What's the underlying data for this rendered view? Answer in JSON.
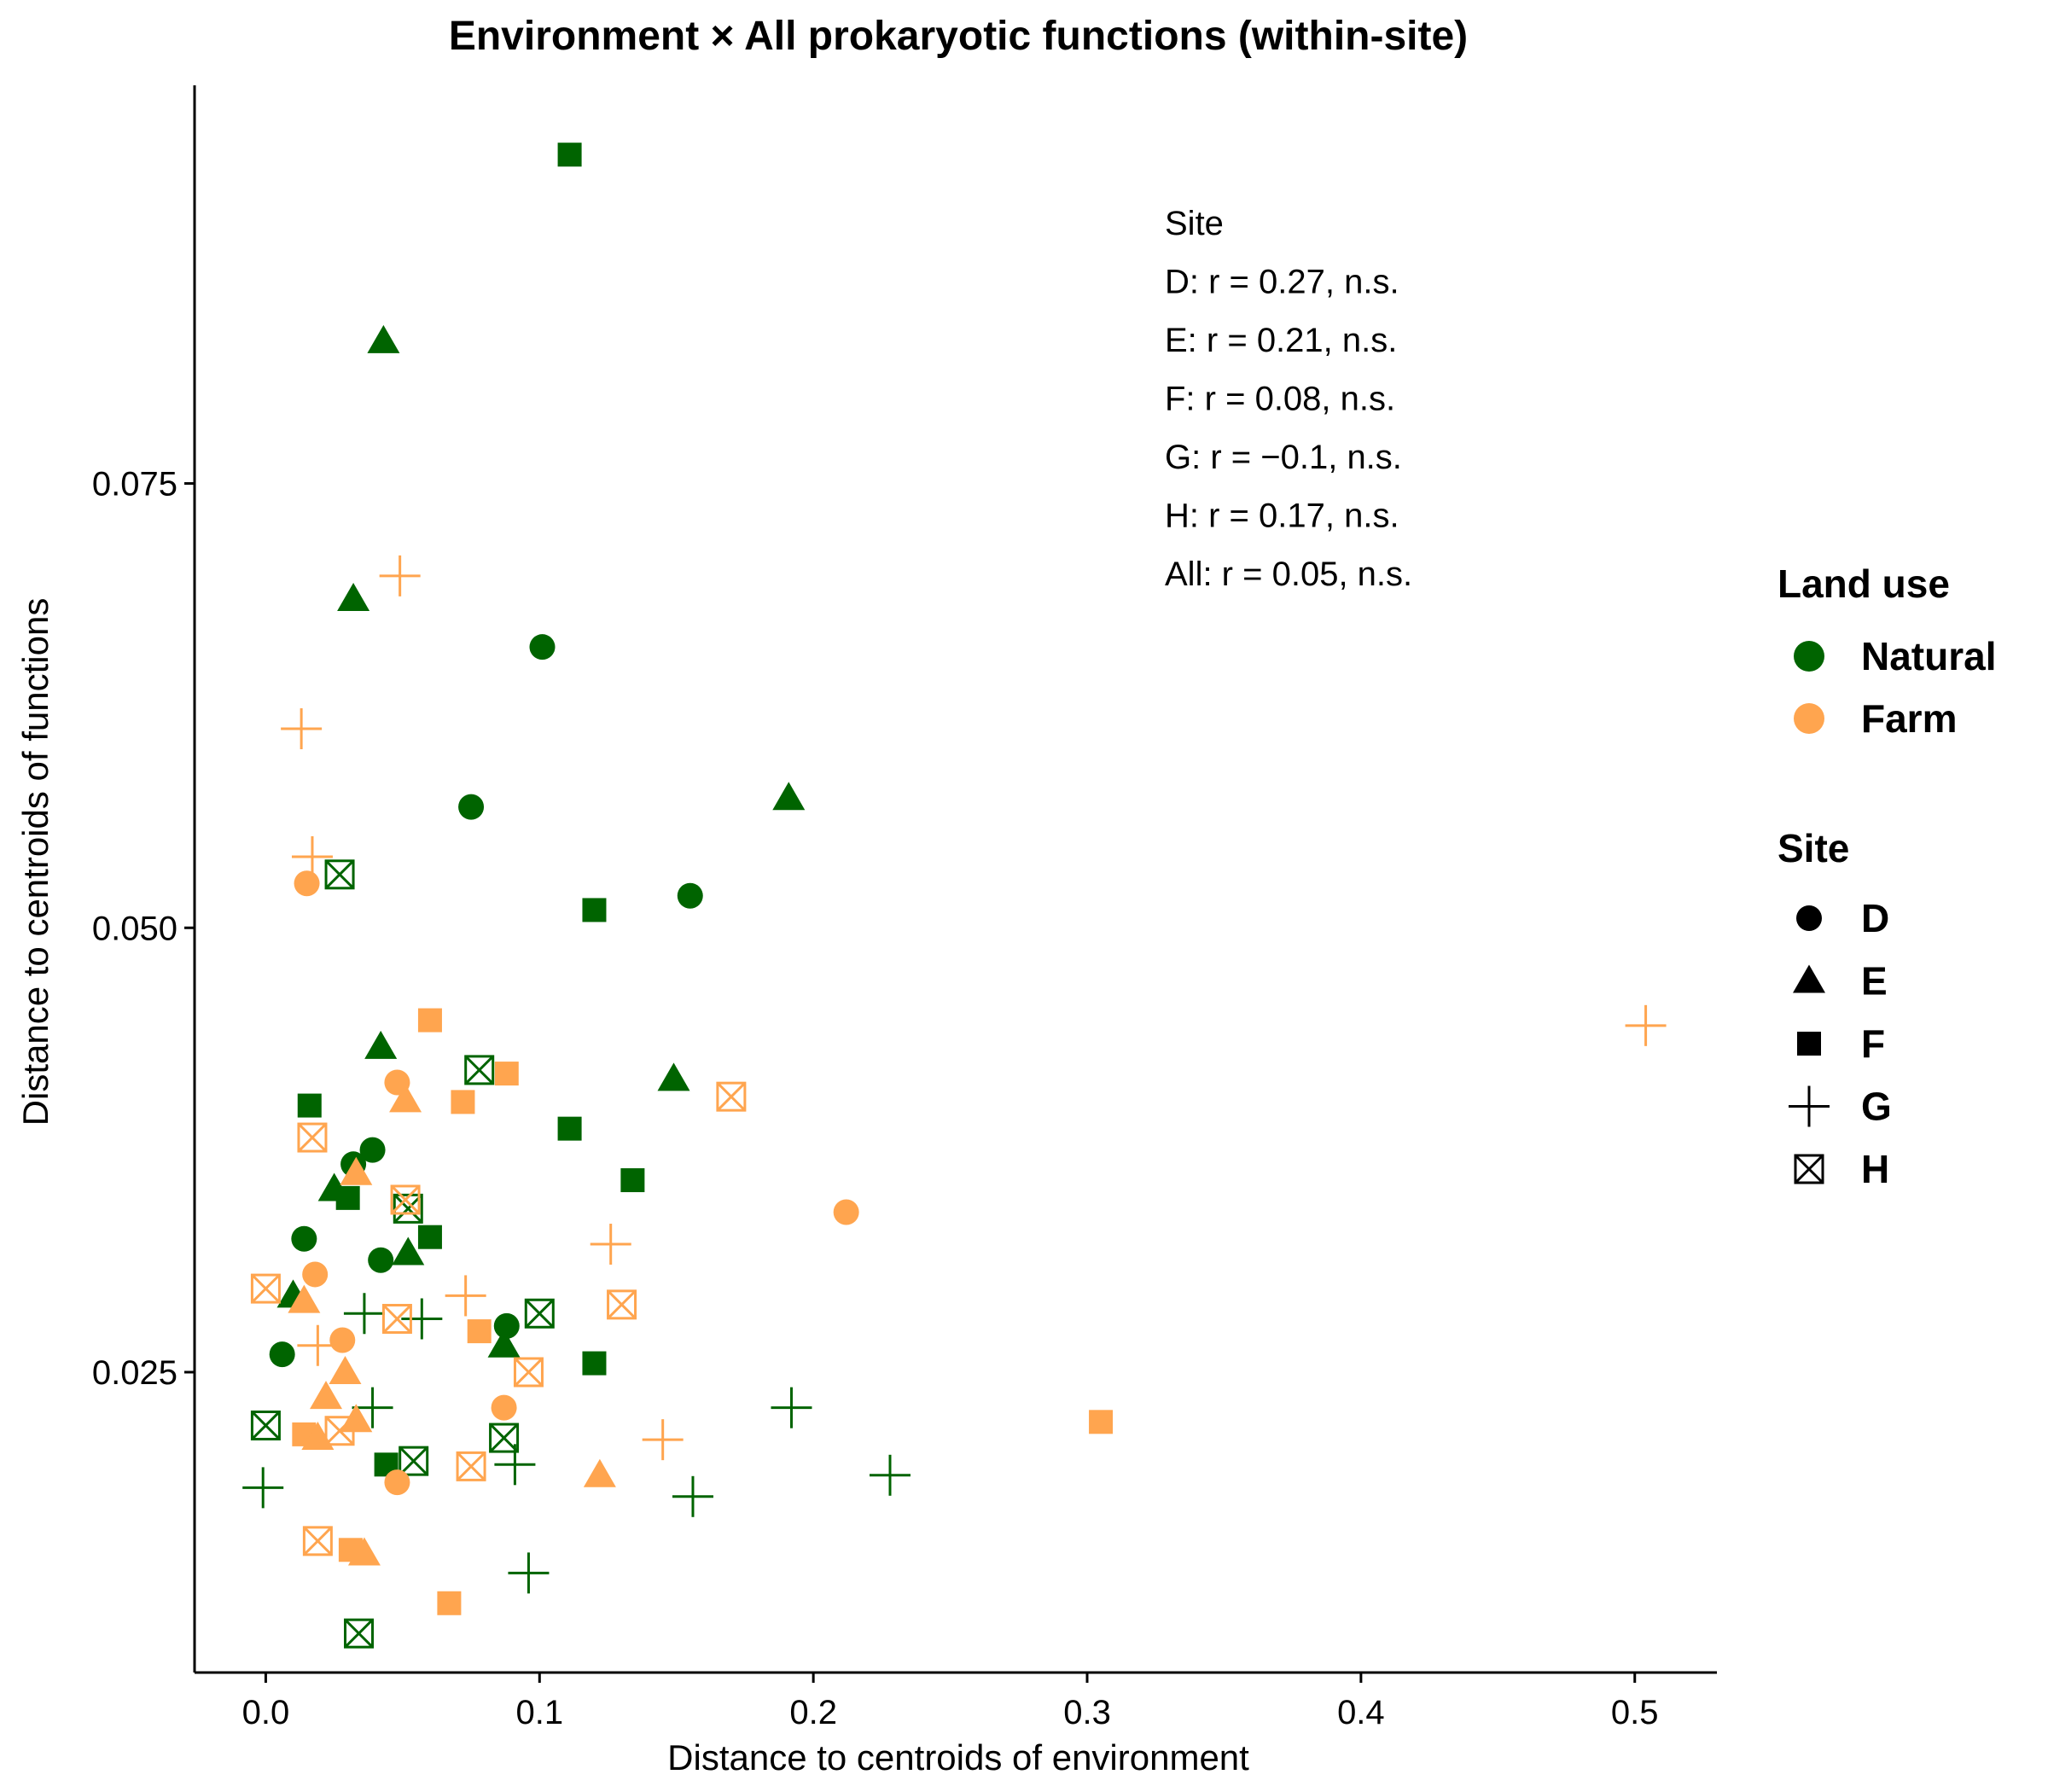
{
  "chart_data": {
    "type": "scatter",
    "title": "Environment × All prokaryotic functions (within-site)",
    "xlabel": "Distance to centroids of environment",
    "ylabel": "Distance to centroids of functions",
    "xlim": [
      -0.026,
      0.53
    ],
    "ylim": [
      0.0081,
      0.0974
    ],
    "x_ticks": [
      0.0,
      0.1,
      0.2,
      0.3,
      0.4,
      0.5
    ],
    "x_tick_labels": [
      "0.0",
      "0.1",
      "0.2",
      "0.3",
      "0.4",
      "0.5"
    ],
    "y_ticks": [
      0.025,
      0.05,
      0.075
    ],
    "y_tick_labels": [
      "0.025",
      "0.050",
      "0.075"
    ],
    "grid": false,
    "colors": {
      "Natural": "#006400",
      "Farm": "#FFA54F"
    },
    "annotation": {
      "header": "Site",
      "lines": [
        "D: r = 0.27, n.s.",
        "E: r = 0.21, n.s.",
        "F: r = 0.08, n.s.",
        "G: r = −0.1, n.s.",
        "H: r = 0.17, n.s.",
        "All: r = 0.05, n.s."
      ]
    },
    "legend": {
      "placement": "right",
      "color_title": "Land use",
      "color_items": [
        {
          "label": "Natural",
          "color": "#006400"
        },
        {
          "label": "Farm",
          "color": "#FFA54F"
        }
      ],
      "shape_title": "Site",
      "shape_items": [
        {
          "label": "D",
          "shape": "circle"
        },
        {
          "label": "E",
          "shape": "triangle"
        },
        {
          "label": "F",
          "shape": "square"
        },
        {
          "label": "G",
          "shape": "plus"
        },
        {
          "label": "H",
          "shape": "boxx"
        }
      ]
    },
    "points": [
      {
        "x": 0.111,
        "y": 0.0935,
        "land": "Natural",
        "site": "F"
      },
      {
        "x": 0.043,
        "y": 0.083,
        "land": "Natural",
        "site": "E"
      },
      {
        "x": 0.032,
        "y": 0.0685,
        "land": "Natural",
        "site": "E"
      },
      {
        "x": 0.101,
        "y": 0.0658,
        "land": "Natural",
        "site": "D"
      },
      {
        "x": 0.191,
        "y": 0.0573,
        "land": "Natural",
        "site": "E"
      },
      {
        "x": 0.075,
        "y": 0.0568,
        "land": "Natural",
        "site": "D"
      },
      {
        "x": 0.155,
        "y": 0.0518,
        "land": "Natural",
        "site": "D"
      },
      {
        "x": 0.12,
        "y": 0.051,
        "land": "Natural",
        "site": "F"
      },
      {
        "x": 0.027,
        "y": 0.053,
        "land": "Natural",
        "site": "H"
      },
      {
        "x": 0.042,
        "y": 0.0433,
        "land": "Natural",
        "site": "E"
      },
      {
        "x": 0.149,
        "y": 0.0415,
        "land": "Natural",
        "site": "E"
      },
      {
        "x": 0.078,
        "y": 0.042,
        "land": "Natural",
        "site": "H"
      },
      {
        "x": 0.016,
        "y": 0.04,
        "land": "Natural",
        "site": "F"
      },
      {
        "x": 0.111,
        "y": 0.0387,
        "land": "Natural",
        "site": "F"
      },
      {
        "x": 0.039,
        "y": 0.0375,
        "land": "Natural",
        "site": "D"
      },
      {
        "x": 0.032,
        "y": 0.0367,
        "land": "Natural",
        "site": "D"
      },
      {
        "x": 0.134,
        "y": 0.0358,
        "land": "Natural",
        "site": "F"
      },
      {
        "x": 0.025,
        "y": 0.0353,
        "land": "Natural",
        "site": "E"
      },
      {
        "x": 0.03,
        "y": 0.0348,
        "land": "Natural",
        "site": "F"
      },
      {
        "x": 0.052,
        "y": 0.0342,
        "land": "Natural",
        "site": "H"
      },
      {
        "x": 0.014,
        "y": 0.0325,
        "land": "Natural",
        "site": "D"
      },
      {
        "x": 0.06,
        "y": 0.0326,
        "land": "Natural",
        "site": "F"
      },
      {
        "x": 0.052,
        "y": 0.0317,
        "land": "Natural",
        "site": "E"
      },
      {
        "x": 0.042,
        "y": 0.0313,
        "land": "Natural",
        "site": "D"
      },
      {
        "x": 0.01,
        "y": 0.0293,
        "land": "Natural",
        "site": "E"
      },
      {
        "x": 0.1,
        "y": 0.0283,
        "land": "Natural",
        "site": "H"
      },
      {
        "x": 0.036,
        "y": 0.0283,
        "land": "Natural",
        "site": "G"
      },
      {
        "x": 0.057,
        "y": 0.028,
        "land": "Natural",
        "site": "G"
      },
      {
        "x": 0.088,
        "y": 0.0276,
        "land": "Natural",
        "site": "D"
      },
      {
        "x": 0.087,
        "y": 0.0265,
        "land": "Natural",
        "site": "E"
      },
      {
        "x": 0.006,
        "y": 0.026,
        "land": "Natural",
        "site": "D"
      },
      {
        "x": 0.12,
        "y": 0.0255,
        "land": "Natural",
        "site": "F"
      },
      {
        "x": 0.039,
        "y": 0.023,
        "land": "Natural",
        "site": "G"
      },
      {
        "x": 0.192,
        "y": 0.023,
        "land": "Natural",
        "site": "G"
      },
      {
        "x": 0.0,
        "y": 0.022,
        "land": "Natural",
        "site": "H"
      },
      {
        "x": 0.087,
        "y": 0.0213,
        "land": "Natural",
        "site": "H"
      },
      {
        "x": 0.054,
        "y": 0.02,
        "land": "Natural",
        "site": "H"
      },
      {
        "x": 0.044,
        "y": 0.0198,
        "land": "Natural",
        "site": "F"
      },
      {
        "x": 0.091,
        "y": 0.0198,
        "land": "Natural",
        "site": "G"
      },
      {
        "x": 0.228,
        "y": 0.0192,
        "land": "Natural",
        "site": "G"
      },
      {
        "x": -0.001,
        "y": 0.0185,
        "land": "Natural",
        "site": "G"
      },
      {
        "x": 0.156,
        "y": 0.018,
        "land": "Natural",
        "site": "G"
      },
      {
        "x": 0.096,
        "y": 0.0137,
        "land": "Natural",
        "site": "G"
      },
      {
        "x": 0.034,
        "y": 0.0103,
        "land": "Natural",
        "site": "H"
      },
      {
        "x": 0.049,
        "y": 0.0698,
        "land": "Farm",
        "site": "G"
      },
      {
        "x": 0.013,
        "y": 0.0612,
        "land": "Farm",
        "site": "G"
      },
      {
        "x": 0.017,
        "y": 0.054,
        "land": "Farm",
        "site": "G"
      },
      {
        "x": 0.015,
        "y": 0.0525,
        "land": "Farm",
        "site": "D"
      },
      {
        "x": 0.504,
        "y": 0.0445,
        "land": "Farm",
        "site": "G"
      },
      {
        "x": 0.06,
        "y": 0.0448,
        "land": "Farm",
        "site": "F"
      },
      {
        "x": 0.088,
        "y": 0.0418,
        "land": "Farm",
        "site": "F"
      },
      {
        "x": 0.048,
        "y": 0.0413,
        "land": "Farm",
        "site": "D"
      },
      {
        "x": 0.17,
        "y": 0.0405,
        "land": "Farm",
        "site": "H"
      },
      {
        "x": 0.051,
        "y": 0.0403,
        "land": "Farm",
        "site": "E"
      },
      {
        "x": 0.072,
        "y": 0.0402,
        "land": "Farm",
        "site": "F"
      },
      {
        "x": 0.017,
        "y": 0.0382,
        "land": "Farm",
        "site": "H"
      },
      {
        "x": 0.033,
        "y": 0.0362,
        "land": "Farm",
        "site": "E"
      },
      {
        "x": 0.051,
        "y": 0.0347,
        "land": "Farm",
        "site": "H"
      },
      {
        "x": 0.212,
        "y": 0.034,
        "land": "Farm",
        "site": "D"
      },
      {
        "x": 0.126,
        "y": 0.0322,
        "land": "Farm",
        "site": "G"
      },
      {
        "x": 0.018,
        "y": 0.0305,
        "land": "Farm",
        "site": "D"
      },
      {
        "x": 0.0,
        "y": 0.0297,
        "land": "Farm",
        "site": "H"
      },
      {
        "x": 0.073,
        "y": 0.0293,
        "land": "Farm",
        "site": "G"
      },
      {
        "x": 0.014,
        "y": 0.029,
        "land": "Farm",
        "site": "E"
      },
      {
        "x": 0.13,
        "y": 0.0288,
        "land": "Farm",
        "site": "H"
      },
      {
        "x": 0.048,
        "y": 0.028,
        "land": "Farm",
        "site": "H"
      },
      {
        "x": 0.078,
        "y": 0.0273,
        "land": "Farm",
        "site": "F"
      },
      {
        "x": 0.028,
        "y": 0.0268,
        "land": "Farm",
        "site": "D"
      },
      {
        "x": 0.019,
        "y": 0.0265,
        "land": "Farm",
        "site": "G"
      },
      {
        "x": 0.096,
        "y": 0.025,
        "land": "Farm",
        "site": "H"
      },
      {
        "x": 0.029,
        "y": 0.025,
        "land": "Farm",
        "site": "E"
      },
      {
        "x": 0.022,
        "y": 0.0236,
        "land": "Farm",
        "site": "E"
      },
      {
        "x": 0.087,
        "y": 0.023,
        "land": "Farm",
        "site": "D"
      },
      {
        "x": 0.033,
        "y": 0.0223,
        "land": "Farm",
        "site": "E"
      },
      {
        "x": 0.305,
        "y": 0.0222,
        "land": "Farm",
        "site": "F"
      },
      {
        "x": 0.027,
        "y": 0.0217,
        "land": "Farm",
        "site": "H"
      },
      {
        "x": 0.014,
        "y": 0.0215,
        "land": "Farm",
        "site": "F"
      },
      {
        "x": 0.019,
        "y": 0.0213,
        "land": "Farm",
        "site": "E"
      },
      {
        "x": 0.145,
        "y": 0.0212,
        "land": "Farm",
        "site": "G"
      },
      {
        "x": 0.075,
        "y": 0.0197,
        "land": "Farm",
        "site": "H"
      },
      {
        "x": 0.122,
        "y": 0.0192,
        "land": "Farm",
        "site": "E"
      },
      {
        "x": 0.048,
        "y": 0.0188,
        "land": "Farm",
        "site": "D"
      },
      {
        "x": 0.019,
        "y": 0.0155,
        "land": "Farm",
        "site": "H"
      },
      {
        "x": 0.031,
        "y": 0.015,
        "land": "Farm",
        "site": "F"
      },
      {
        "x": 0.036,
        "y": 0.0148,
        "land": "Farm",
        "site": "E"
      },
      {
        "x": 0.067,
        "y": 0.012,
        "land": "Farm",
        "site": "F"
      }
    ]
  }
}
